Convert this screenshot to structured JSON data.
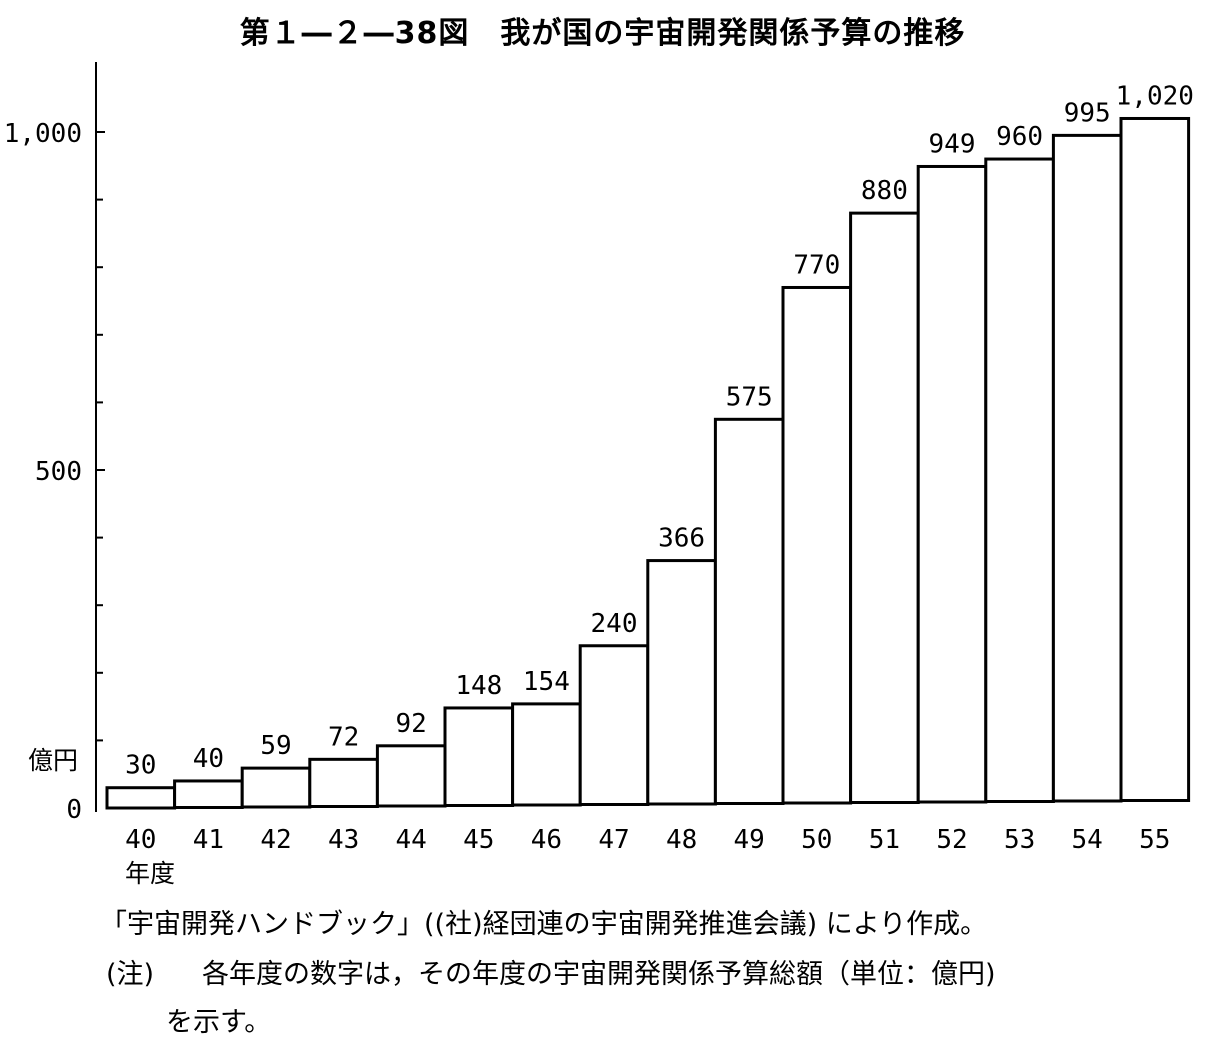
{
  "title": "第１―２―38図　我が国の宇宙開発関係予算の推移",
  "chart_data": {
    "type": "bar",
    "categories": [
      "40",
      "41",
      "42",
      "43",
      "44",
      "45",
      "46",
      "47",
      "48",
      "49",
      "50",
      "51",
      "52",
      "53",
      "54",
      "55"
    ],
    "values": [
      30,
      40,
      59,
      72,
      92,
      148,
      154,
      240,
      366,
      575,
      770,
      880,
      949,
      960,
      995,
      1020
    ],
    "value_labels": [
      "30",
      "40",
      "59",
      "72",
      "92",
      "148",
      "154",
      "240",
      "366",
      "575",
      "770",
      "880",
      "949",
      "960",
      "995",
      "1,020"
    ],
    "ylim": [
      0,
      1100
    ],
    "y_ticks": [
      0,
      500,
      1000
    ],
    "y_tick_labels": [
      "0",
      "500",
      "1,000"
    ],
    "y_unit": "億円",
    "x_unit": "年度",
    "grid": false
  },
  "source": "「宇宙開発ハンドブック」((社)経団連の宇宙開発推進会議) により作成。",
  "note": {
    "prefix": "(注)",
    "text": "各年度の数字は，その年度の宇宙開発関係予算総額（単位：億円)",
    "text_2": "を示す。"
  }
}
